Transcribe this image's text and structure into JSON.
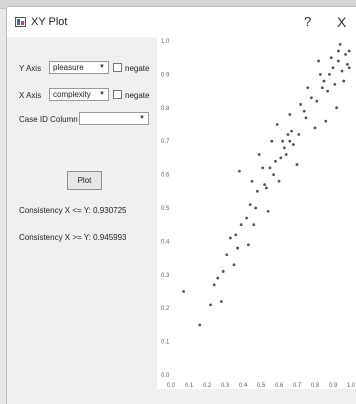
{
  "window": {
    "title": "XY Plot",
    "help_glyph": "?",
    "close_glyph": "X"
  },
  "controls": {
    "y_axis_label": "Y Axis",
    "y_axis_value": "pleasure",
    "x_axis_label": "X Axis",
    "x_axis_value": "complexity",
    "negate_label": "negate",
    "case_id_label": "Case ID Column",
    "case_id_value": "",
    "dropdown_arrow": "▼",
    "plot_button": "Plot"
  },
  "results": {
    "consistency_x_le_y": "Consistency X <= Y: 0.930725",
    "consistency_x_ge_y": "Consistency X >= Y: 0.945993"
  },
  "chart_data": {
    "type": "scatter",
    "xlim": [
      0.0,
      1.0
    ],
    "ylim": [
      0.0,
      1.0
    ],
    "x_tick_labels": [
      "0.0",
      "0.1",
      "0.2",
      "0.3",
      "0.4",
      "0.5",
      "0.6",
      "0.7",
      "0.8",
      "0.9",
      "1.0"
    ],
    "y_tick_labels": [
      "0.0",
      "0.1",
      "0.2",
      "0.3",
      "0.4",
      "0.5",
      "0.6",
      "0.7",
      "0.8",
      "0.9",
      "1.0"
    ],
    "grid": false,
    "points": {
      "x": [
        0.07,
        0.16,
        0.24,
        0.22,
        0.26,
        0.29,
        0.31,
        0.35,
        0.37,
        0.36,
        0.39,
        0.42,
        0.44,
        0.47,
        0.48,
        0.52,
        0.53,
        0.55,
        0.57,
        0.58,
        0.61,
        0.63,
        0.64,
        0.66,
        0.67,
        0.62,
        0.66,
        0.72,
        0.74,
        0.78,
        0.81,
        0.84,
        0.85,
        0.87,
        0.88,
        0.9,
        0.91,
        0.93,
        0.95,
        0.97,
        0.98,
        0.99,
        0.38,
        0.45,
        0.49,
        0.56,
        0.59,
        0.71,
        0.76,
        0.83,
        0.89,
        0.94,
        0.96,
        0.99,
        0.92,
        0.86,
        0.8,
        0.7,
        0.68,
        0.6,
        0.54,
        0.46,
        0.43,
        0.33,
        0.28,
        0.51,
        0.65,
        0.75,
        0.82,
        0.93
      ],
      "y": [
        0.25,
        0.15,
        0.27,
        0.21,
        0.29,
        0.31,
        0.36,
        0.33,
        0.38,
        0.42,
        0.45,
        0.47,
        0.51,
        0.5,
        0.55,
        0.57,
        0.56,
        0.62,
        0.6,
        0.64,
        0.65,
        0.68,
        0.66,
        0.7,
        0.73,
        0.7,
        0.78,
        0.81,
        0.79,
        0.83,
        0.82,
        0.86,
        0.88,
        0.85,
        0.9,
        0.92,
        0.87,
        0.94,
        0.91,
        0.96,
        0.93,
        0.97,
        0.61,
        0.58,
        0.66,
        0.7,
        0.75,
        0.72,
        0.86,
        0.9,
        0.95,
        0.99,
        0.88,
        0.92,
        0.8,
        0.76,
        0.74,
        0.63,
        0.69,
        0.58,
        0.49,
        0.45,
        0.39,
        0.41,
        0.22,
        0.62,
        0.72,
        0.77,
        0.94,
        0.97
      ]
    }
  }
}
